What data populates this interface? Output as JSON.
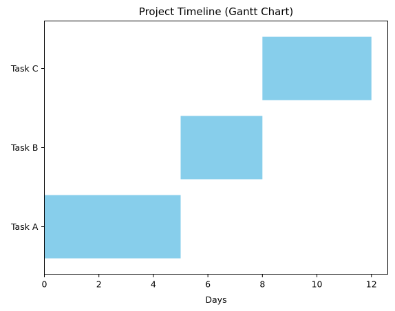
{
  "chart_data": {
    "type": "bar",
    "orientation": "horizontal",
    "title": "Project Timeline (Gantt Chart)",
    "xlabel": "Days",
    "ylabel": "",
    "xlim": [
      0,
      12.6
    ],
    "xticks": [
      0,
      2,
      4,
      6,
      8,
      10,
      12
    ],
    "categories": [
      "Task A",
      "Task B",
      "Task C"
    ],
    "tasks": [
      {
        "name": "Task A",
        "start": 0,
        "duration": 5
      },
      {
        "name": "Task B",
        "start": 5,
        "duration": 3
      },
      {
        "name": "Task C",
        "start": 8,
        "duration": 4
      }
    ],
    "bar_color": "#87ceeb",
    "grid": false,
    "legend": "none"
  }
}
